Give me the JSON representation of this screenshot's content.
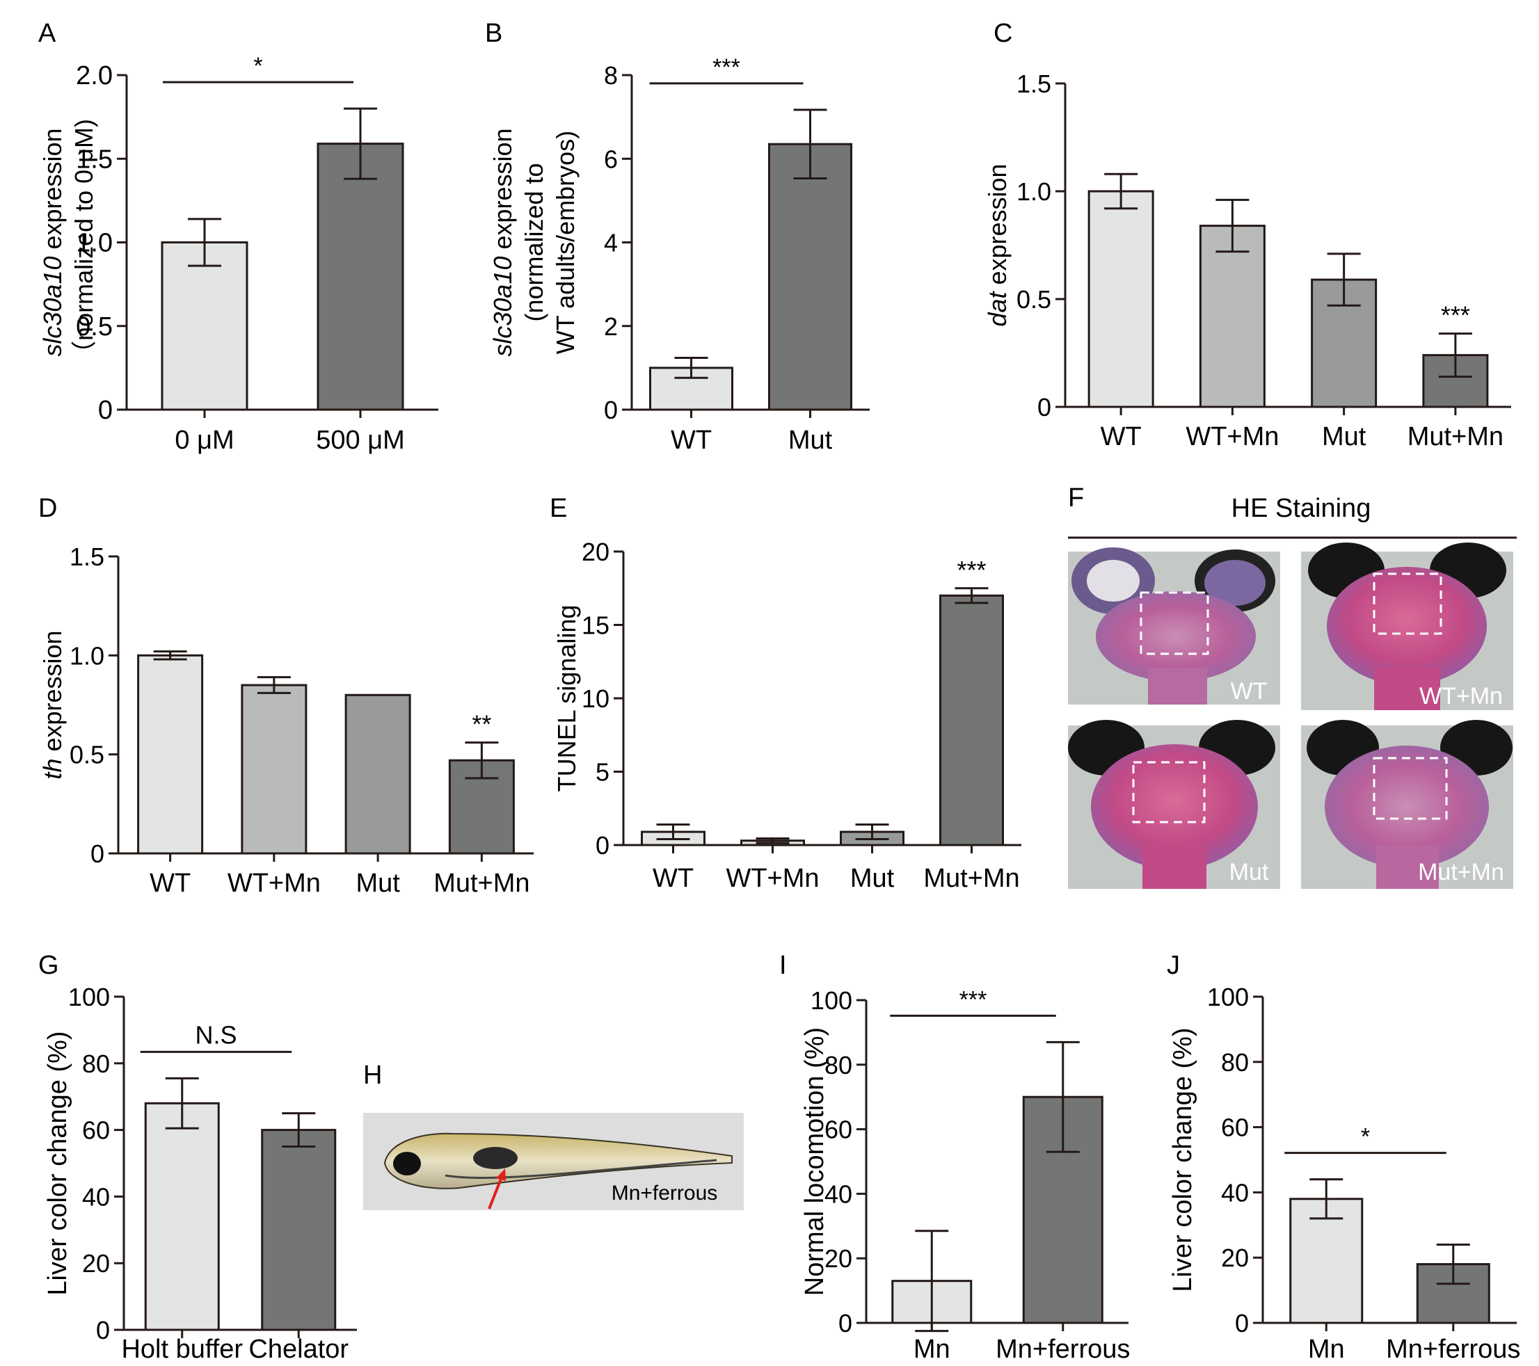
{
  "colors": {
    "light": "#e3e5e4",
    "lightMid": "#b9bbbb",
    "mid": "#999b9b",
    "dark": "#747675",
    "stroke": "#231916",
    "histoBg": "#c5c9c6",
    "photoBg": "#dcdddc"
  },
  "chart_data": [
    {
      "panel": "A",
      "type": "bar",
      "categories": [
        "0 μM",
        "500 μM"
      ],
      "values": [
        1.0,
        1.59
      ],
      "errors": [
        0.14,
        0.21
      ],
      "ylabel_italic": "slc30a10",
      "ylabel_rest": " expression",
      "ylabel2": "（normalized to 0 μM)",
      "yticks": [
        "0",
        "0.5",
        "1.0",
        "1.5",
        "2.0"
      ],
      "ylim": [
        0,
        2.0
      ],
      "significance": [
        {
          "from": 0,
          "to": 1,
          "label": "*"
        }
      ],
      "colors": [
        "light",
        "dark"
      ]
    },
    {
      "panel": "B",
      "type": "bar",
      "categories": [
        "WT",
        "Mut"
      ],
      "values": [
        1.0,
        6.35
      ],
      "errors": [
        0.24,
        0.82
      ],
      "ylabel_italic": "slc30a10",
      "ylabel_rest": " expression",
      "ylabel2": "(normalized to",
      "ylabel3": "WT adults/embryos)",
      "yticks": [
        "0",
        "2",
        "4",
        "6",
        "8"
      ],
      "ylim": [
        0,
        8
      ],
      "significance": [
        {
          "from": 0,
          "to": 1,
          "label": "***"
        }
      ],
      "colors": [
        "light",
        "dark"
      ]
    },
    {
      "panel": "C",
      "type": "bar",
      "categories": [
        "WT",
        "WT+Mn",
        "Mut",
        "Mut+Mn"
      ],
      "values": [
        1.0,
        0.84,
        0.59,
        0.24
      ],
      "errors": [
        0.08,
        0.12,
        0.12,
        0.1
      ],
      "ylabel_italic": "dat",
      "ylabel_rest": " expression",
      "yticks": [
        "0",
        "0.5",
        "1.0",
        "1.5"
      ],
      "ylim": [
        0,
        1.5
      ],
      "stars": [
        {
          "index": 3,
          "label": "***"
        }
      ],
      "colors": [
        "light",
        "lightMid",
        "mid",
        "dark"
      ]
    },
    {
      "panel": "D",
      "type": "bar",
      "categories": [
        "WT",
        "WT+Mn",
        "Mut",
        "Mut+Mn"
      ],
      "values": [
        1.0,
        0.85,
        0.8,
        0.47
      ],
      "errors": [
        0.02,
        0.04,
        0.0,
        0.09
      ],
      "ylabel_italic": "th",
      "ylabel_rest": " expression",
      "yticks": [
        "0",
        "0.5",
        "1.0",
        "1.5"
      ],
      "ylim": [
        0,
        1.5
      ],
      "stars": [
        {
          "index": 3,
          "label": "**"
        }
      ],
      "colors": [
        "light",
        "lightMid",
        "mid",
        "dark"
      ]
    },
    {
      "panel": "E",
      "type": "bar",
      "categories": [
        "WT",
        "WT+Mn",
        "Mut",
        "Mut+Mn"
      ],
      "values": [
        0.9,
        0.3,
        0.9,
        17.0
      ],
      "errors": [
        0.5,
        0.15,
        0.5,
        0.5
      ],
      "ylabel_italic": "",
      "ylabel_rest": "TUNEL signaling",
      "yticks": [
        "0",
        "5",
        "10",
        "15",
        "20"
      ],
      "ylim": [
        0,
        20
      ],
      "stars": [
        {
          "index": 3,
          "label": "***"
        }
      ],
      "colors": [
        "light",
        "light",
        "mid",
        "dark"
      ]
    },
    {
      "panel": "G",
      "type": "bar",
      "categories": [
        "Holt buffer",
        "Chelator"
      ],
      "values": [
        68,
        60
      ],
      "errors": [
        7.5,
        5.0
      ],
      "ylabel_italic": "",
      "ylabel_rest": "Liver color change (%)",
      "yticks": [
        "0",
        "20",
        "40",
        "60",
        "80",
        "100"
      ],
      "ylim": [
        0,
        100
      ],
      "significance": [
        {
          "from": 0,
          "to": 1,
          "label": "N.S"
        }
      ],
      "colors": [
        "light",
        "dark"
      ]
    },
    {
      "panel": "I",
      "type": "bar",
      "categories": [
        "Mn",
        "Mn+ferrous"
      ],
      "values": [
        13,
        70
      ],
      "errors": [
        15.5,
        17.0
      ],
      "ylabel_italic": "",
      "ylabel_rest": "Normal locomotion (%)",
      "yticks": [
        "0",
        "20",
        "40",
        "60",
        "80",
        "100"
      ],
      "ylim": [
        0,
        100
      ],
      "significance": [
        {
          "from": 0,
          "to": 1,
          "label": "***"
        }
      ],
      "colors": [
        "light",
        "dark"
      ]
    },
    {
      "panel": "J",
      "type": "bar",
      "categories": [
        "Mn",
        "Mn+ferrous"
      ],
      "values": [
        38,
        18
      ],
      "errors": [
        6.0,
        6.0
      ],
      "ylabel_italic": "",
      "ylabel_rest": "Liver color change (%)",
      "yticks": [
        "0",
        "20",
        "40",
        "60",
        "80",
        "100"
      ],
      "ylim": [
        0,
        100
      ],
      "significance": [
        {
          "from": 0,
          "to": 1,
          "label": "*"
        }
      ],
      "colors": [
        "light",
        "dark"
      ]
    }
  ],
  "panelF": {
    "letter": "F",
    "title": "HE Staining",
    "images": [
      {
        "label": "WT",
        "name": "he-image-wt"
      },
      {
        "label": "WT+Mn",
        "name": "he-image-wt-mn"
      },
      {
        "label": "Mut",
        "name": "he-image-mut"
      },
      {
        "label": "Mut+Mn",
        "name": "he-image-mut-mn"
      }
    ]
  },
  "panelH": {
    "letter": "H",
    "label": "Mn+ferrous"
  }
}
